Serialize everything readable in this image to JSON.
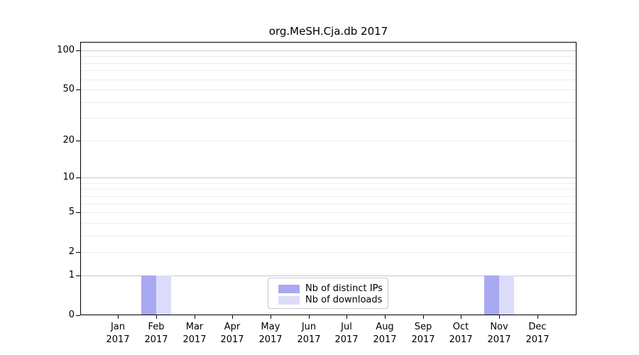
{
  "chart_data": {
    "type": "bar",
    "title": "org.MeSH.Cja.db 2017",
    "categories": [
      "Jan 2017",
      "Feb 2017",
      "Mar 2017",
      "Apr 2017",
      "May 2017",
      "Jun 2017",
      "Jul 2017",
      "Aug 2017",
      "Sep 2017",
      "Oct 2017",
      "Nov 2017",
      "Dec 2017"
    ],
    "series": [
      {
        "name": "Nb of distinct IPs",
        "color": "#a9a9f2",
        "values": [
          0,
          1,
          0,
          0,
          0,
          0,
          0,
          0,
          0,
          0,
          1,
          0
        ]
      },
      {
        "name": "Nb of downloads",
        "color": "#dcdcfa",
        "values": [
          0,
          1,
          0,
          0,
          0,
          0,
          0,
          0,
          0,
          0,
          1,
          0
        ]
      }
    ],
    "xlabel": "",
    "ylabel": "",
    "yticks": [
      0,
      1,
      2,
      5,
      10,
      20,
      50,
      100
    ],
    "ylim": [
      0,
      116
    ],
    "scale": "log1p",
    "grid": "horizontal",
    "minor_grid_values": [
      2,
      3,
      4,
      5,
      6,
      7,
      8,
      9,
      20,
      30,
      40,
      50,
      60,
      70,
      80,
      90
    ],
    "major_grid_values": [
      1,
      10,
      100
    ],
    "legend_position": "bottom-center",
    "colors": {
      "minor_grid": "#ededed",
      "major_grid": "#c9c9c9",
      "axis": "#000000",
      "legend_border": "#c9c9c9",
      "background": "#ffffff"
    }
  }
}
